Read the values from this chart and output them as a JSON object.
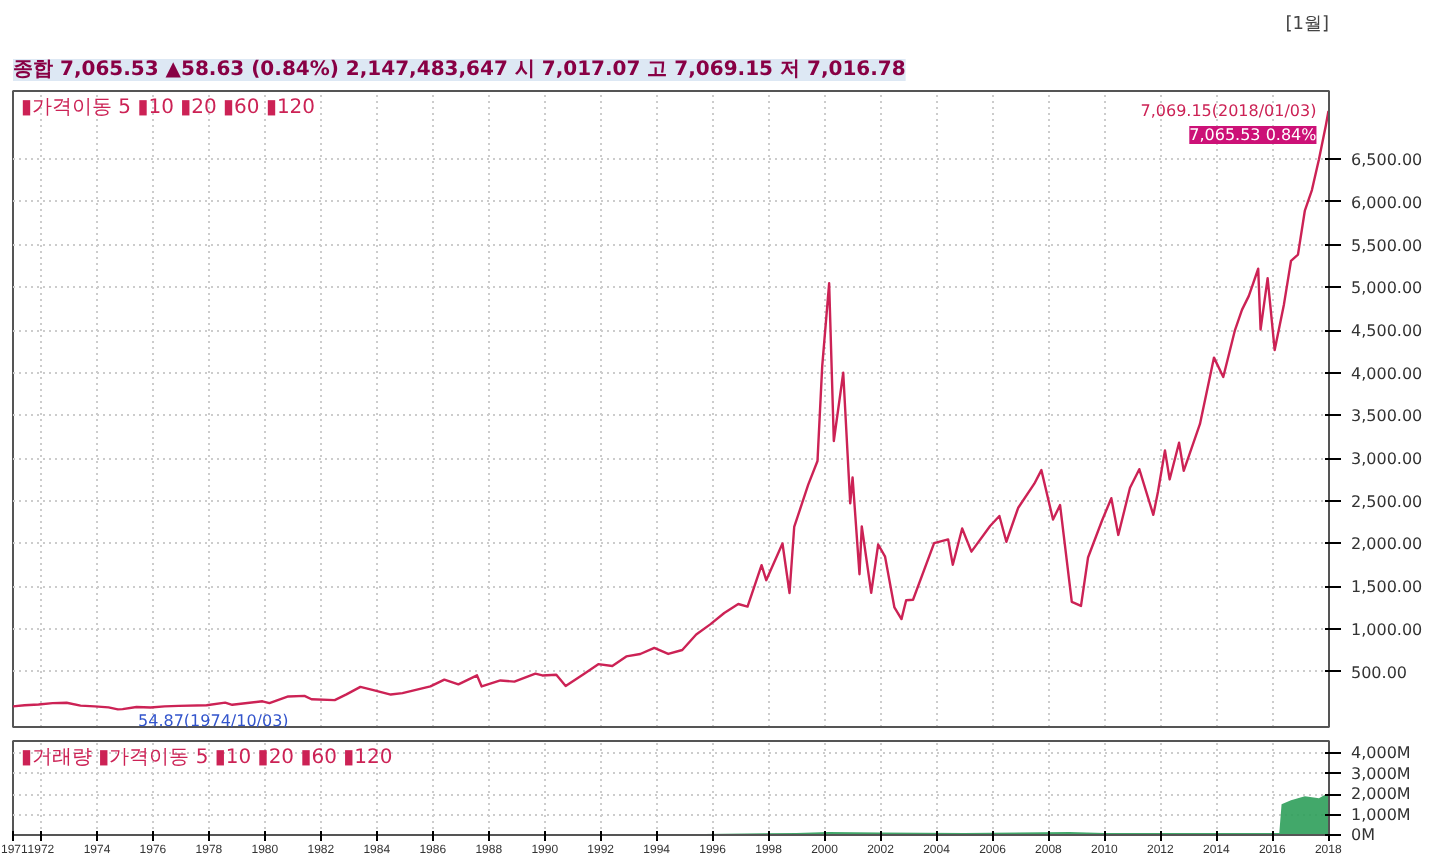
{
  "chart_data": [
    {
      "type": "line",
      "title": "종합 7,065.53 ▲58.63 (0.84%) 2,147,483,647 시 7,017.07 고 7,069.15 저 7,016.78",
      "subtitle": "[1월]",
      "x": [
        "1971-01",
        "1971-06",
        "1971-12",
        "1972-06",
        "1972-12",
        "1973-06",
        "1973-12",
        "1974-06",
        "1974-10",
        "1974-12",
        "1975-06",
        "1975-12",
        "1976-06",
        "1976-12",
        "1977-12",
        "1978-08",
        "1978-11",
        "1979-12",
        "1980-03",
        "1980-11",
        "1981-06",
        "1981-09",
        "1982-07",
        "1982-12",
        "1983-06",
        "1983-12",
        "1984-07",
        "1984-12",
        "1985-12",
        "1986-06",
        "1986-12",
        "1987-08",
        "1987-10",
        "1988-06",
        "1988-12",
        "1989-09",
        "1989-12",
        "1990-06",
        "1990-10",
        "1991-06",
        "1991-12",
        "1992-06",
        "1992-12",
        "1993-06",
        "1993-12",
        "1994-06",
        "1994-12",
        "1995-06",
        "1995-12",
        "1996-06",
        "1996-12",
        "1997-04",
        "1997-10",
        "1997-12",
        "1998-07",
        "1998-10",
        "1998-12",
        "1999-06",
        "1999-10",
        "1999-12",
        "2000-03",
        "2000-05",
        "2000-09",
        "2000-12",
        "2001-01",
        "2001-04",
        "2001-05",
        "2001-09",
        "2001-12",
        "2002-03",
        "2002-07",
        "2002-10",
        "2002-12",
        "2003-03",
        "2003-12",
        "2004-06",
        "2004-08",
        "2004-12",
        "2005-04",
        "2005-12",
        "2006-04",
        "2006-07",
        "2006-12",
        "2007-07",
        "2007-10",
        "2008-03",
        "2008-06",
        "2008-11",
        "2009-03",
        "2009-06",
        "2009-12",
        "2010-04",
        "2010-07",
        "2010-12",
        "2011-04",
        "2011-10",
        "2011-12",
        "2012-03",
        "2012-05",
        "2012-09",
        "2012-11",
        "2013-06",
        "2013-12",
        "2014-04",
        "2014-09",
        "2014-12",
        "2015-03",
        "2015-07",
        "2015-08",
        "2015-11",
        "2016-02",
        "2016-06",
        "2016-09",
        "2016-12",
        "2017-03",
        "2017-06",
        "2017-09",
        "2017-12",
        "2018-01-03"
      ],
      "series": [
        {
          "color": "#cc2255",
          "values": [
            92,
            105,
            114,
            130,
            134,
            100,
            92,
            80,
            56,
            60,
            84,
            78,
            92,
            98,
            105,
            135,
            110,
            151,
            130,
            208,
            215,
            175,
            165,
            232,
            320,
            279,
            230,
            247,
            325,
            405,
            349,
            455,
            325,
            395,
            381,
            475,
            454,
            462,
            330,
            475,
            586,
            565,
            677,
            705,
            777,
            706,
            752,
            933,
            1052,
            1185,
            1291,
            1260,
            1745,
            1570,
            2000,
            1420,
            2193,
            2686,
            2966,
            4069,
            5048,
            3200,
            4000,
            2470,
            2773,
            1640,
            2200,
            1423,
            1988,
            1845,
            1250,
            1114,
            1335,
            1341,
            2003,
            2048,
            1750,
            2175,
            1904,
            2205,
            2322,
            2020,
            2415,
            2700,
            2859,
            2280,
            2450,
            1316,
            1268,
            1835,
            2269,
            2530,
            2100,
            2653,
            2870,
            2335,
            2605,
            3090,
            2750,
            3180,
            2850,
            3400,
            4177,
            3950,
            4500,
            4736,
            4900,
            5218,
            4506,
            5108,
            4266,
            4800,
            5310,
            5383,
            5900,
            6140,
            6500,
            6903,
            7065.53
          ]
        }
      ],
      "xlim": [
        "1971-01",
        "2018-01-10"
      ],
      "ylim": [
        -150,
        7300
      ],
      "yticks": [
        {
          "value": 500,
          "label": "500.00"
        },
        {
          "value": 1000,
          "label": "1,000.00"
        },
        {
          "value": 1500,
          "label": "1,500.00"
        },
        {
          "value": 2000,
          "label": "2,000.00"
        },
        {
          "value": 2500,
          "label": "2,500.00"
        },
        {
          "value": 3000,
          "label": "3,000.00"
        },
        {
          "value": 3500,
          "label": "3,500.00"
        },
        {
          "value": 4000,
          "label": "4,000.00"
        },
        {
          "value": 4500,
          "label": "4,500.00"
        },
        {
          "value": 5000,
          "label": "5,000.00"
        },
        {
          "value": 5500,
          "label": "5,500.00"
        },
        {
          "value": 6000,
          "label": "6,000.00"
        },
        {
          "value": 6500,
          "label": "6,500.00"
        }
      ],
      "xticks": [
        "1971",
        "1972",
        "1974",
        "1976",
        "1978",
        "1980",
        "1982",
        "1984",
        "1986",
        "1988",
        "1990",
        "1992",
        "1994",
        "1996",
        "1998",
        "2000",
        "2002",
        "2004",
        "2006",
        "2008",
        "2010",
        "2012",
        "2014",
        "2016",
        "2018"
      ],
      "tick_labels": "y",
      "grid": true,
      "annotations": [
        "▮가격이동 5 ▮10 ▮20 ▮60 ▮120",
        {
          "text": "54.87(1974/10/03)",
          "x": "1974-10-03",
          "y": 54.87
        },
        {
          "text": "7,069.15(2018/01/03)",
          "x": "2018-01-03",
          "y": 7069.15
        },
        {
          "text": "7,065.53 0.84%",
          "x": "2018-01-03",
          "y": 7065.53
        }
      ]
    },
    {
      "type": "area",
      "x": [
        "1971-01",
        "1980-01",
        "1990-01",
        "1995-01",
        "1999-01",
        "2000-03",
        "2002-01",
        "2005-01",
        "2008-10",
        "2010-01",
        "2015-01",
        "2016-04",
        "2016-05",
        "2016-09",
        "2017-03",
        "2017-09",
        "2017-12",
        "2018-01-03"
      ],
      "series": [
        {
          "color": "#2e9e5a",
          "values": [
            5,
            10,
            20,
            40,
            100,
            150,
            120,
            100,
            150,
            100,
            100,
            100,
            1500,
            1700,
            1900,
            1800,
            2000,
            1900
          ]
        }
      ],
      "xlim": [
        "1971-01",
        "2018-01-10"
      ],
      "ylim": [
        0,
        4600
      ],
      "yticks": [
        {
          "value": 0,
          "label": "0M"
        },
        {
          "value": 1000,
          "label": "1,000M"
        },
        {
          "value": 2000,
          "label": "2,000M"
        },
        {
          "value": 3000,
          "label": "3,000M"
        },
        {
          "value": 4000,
          "label": "4,000M"
        }
      ],
      "xticks": [
        "1971",
        "1972",
        "1974",
        "1976",
        "1978",
        "1980",
        "1982",
        "1984",
        "1986",
        "1988",
        "1990",
        "1992",
        "1994",
        "1996",
        "1998",
        "2000",
        "2002",
        "2004",
        "2006",
        "2008",
        "2010",
        "2012",
        "2014",
        "2016",
        "2018"
      ],
      "grid": true,
      "annotations": [
        "▮거래량 ▮가격이동 5 ▮10 ▮20 ▮60 ▮120"
      ]
    }
  ]
}
